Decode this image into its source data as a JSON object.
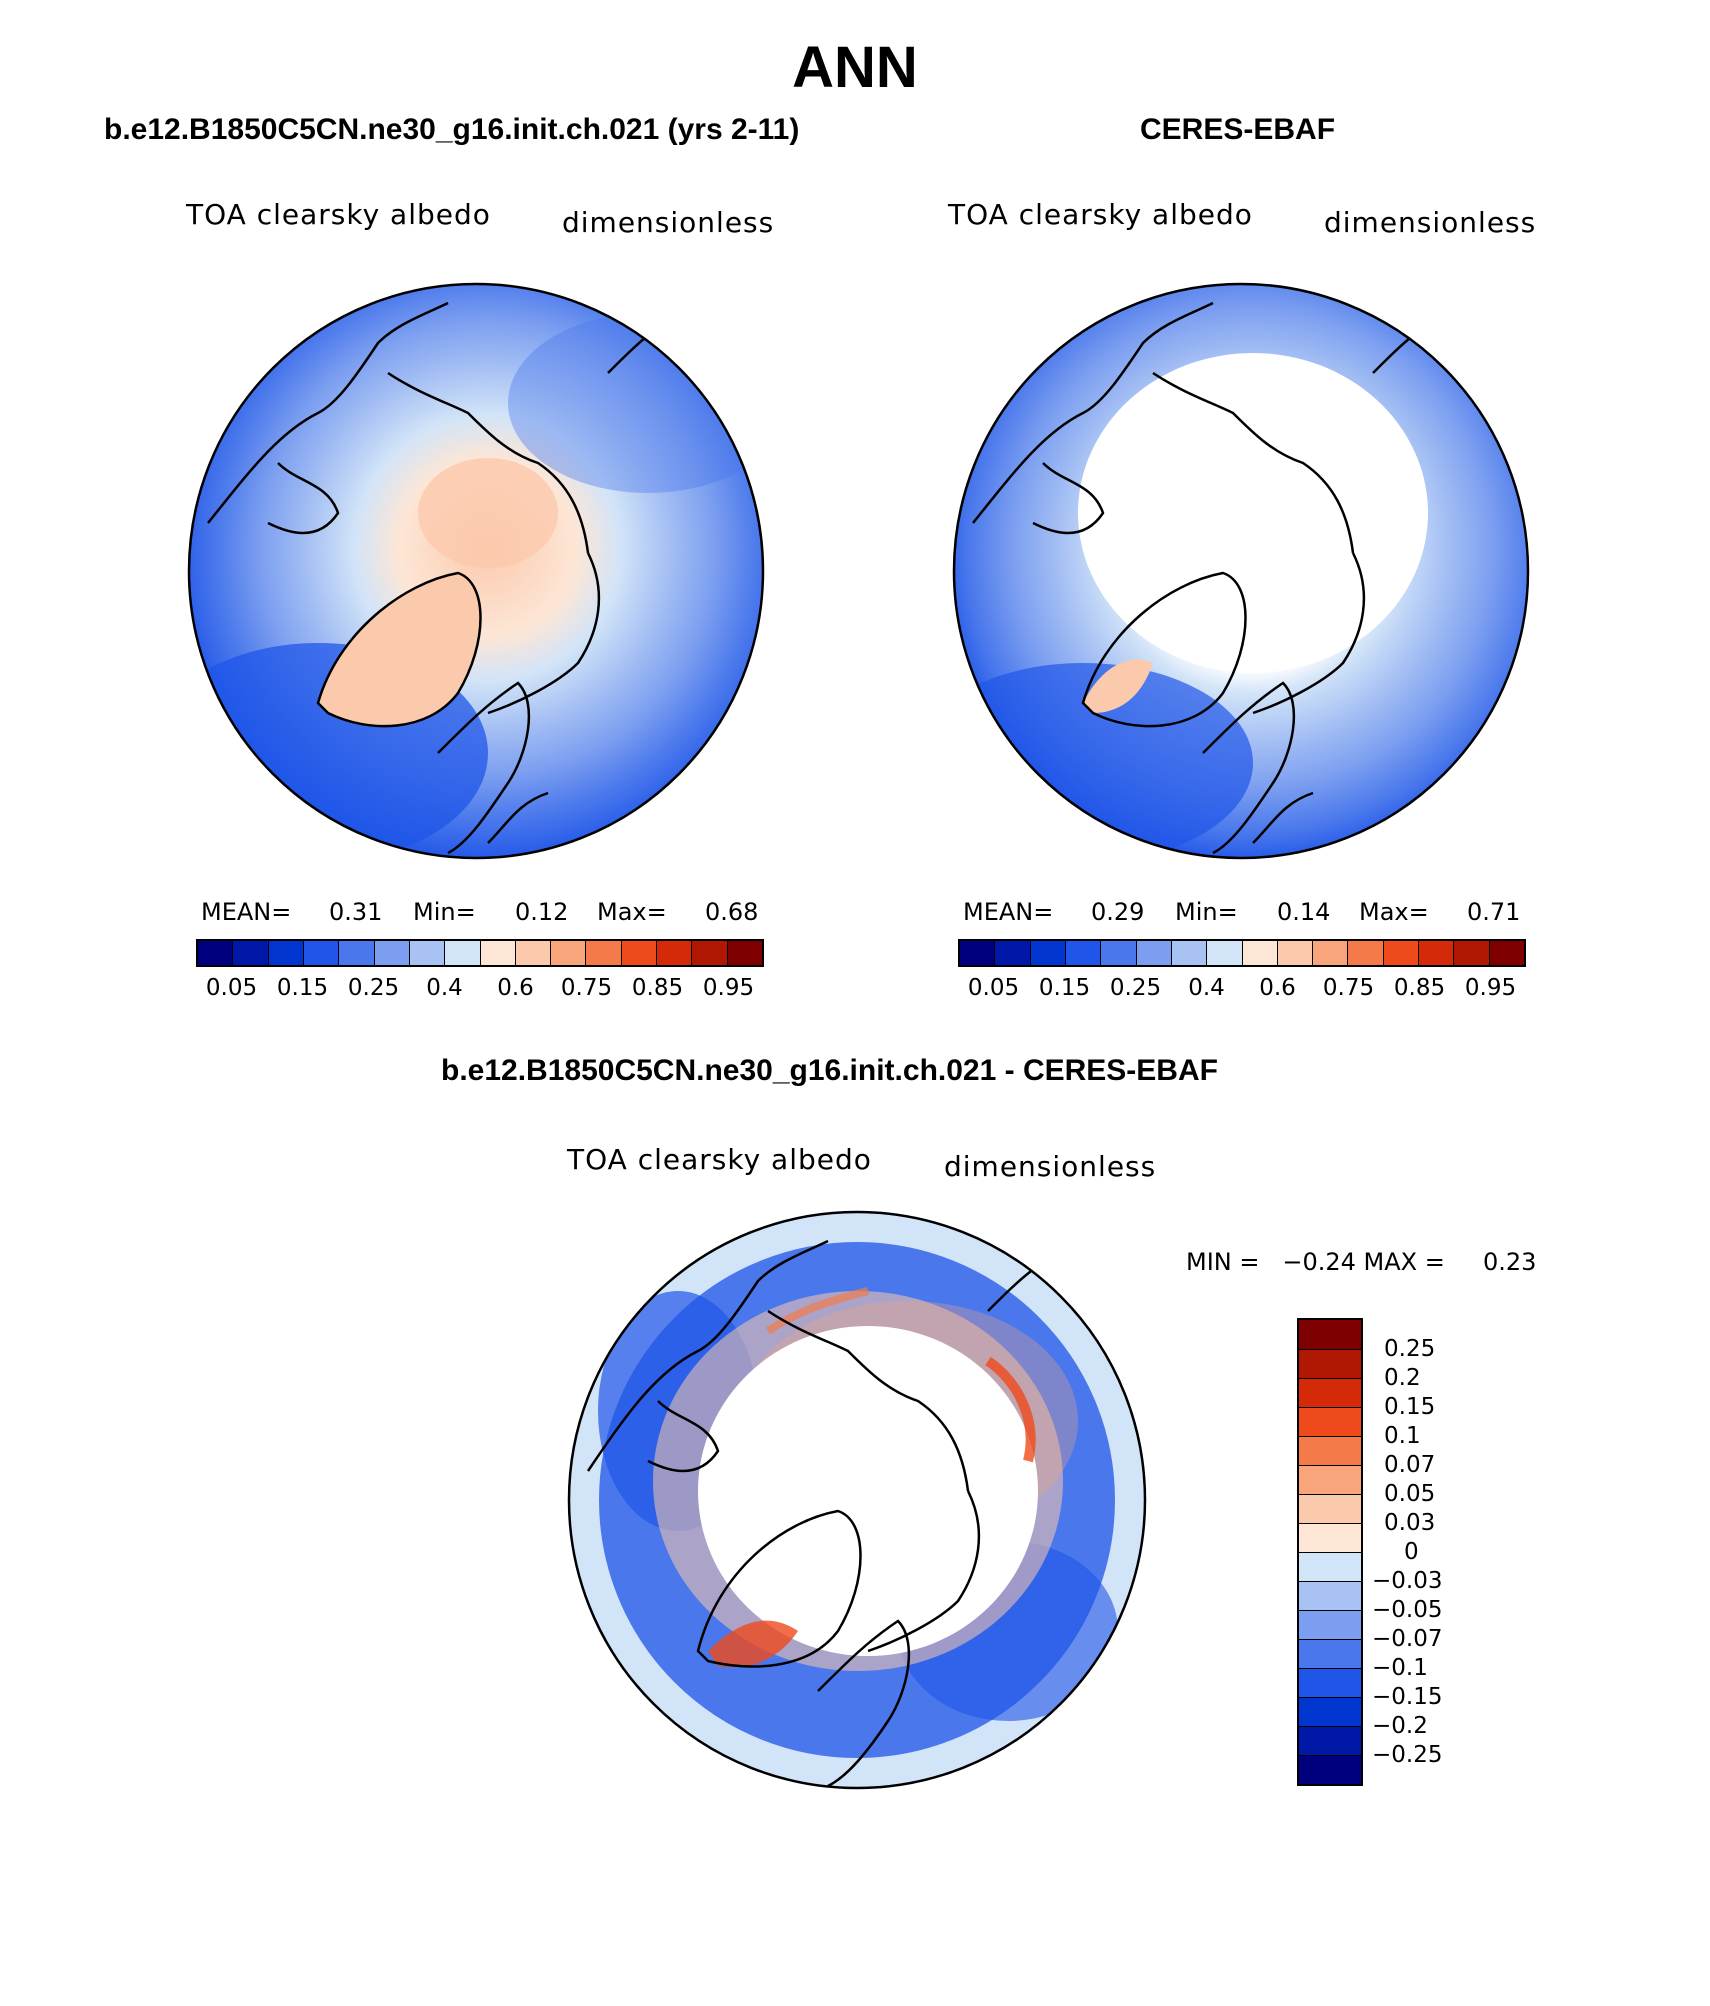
{
  "title": "ANN",
  "panels": [
    {
      "title": "b.e12.B1850C5CN.ne30_g16.init.ch.021 (yrs 2-11)",
      "variable": "TOA clearsky albedo",
      "units": "dimensionless",
      "mean_label": "MEAN=",
      "mean": "0.31",
      "min_label": "Min=",
      "min": "0.12",
      "max_label": "Max=",
      "max": "0.68"
    },
    {
      "title": "CERES-EBAF",
      "variable": "TOA clearsky albedo",
      "units": "dimensionless",
      "mean_label": "MEAN=",
      "mean": "0.29",
      "min_label": "Min=",
      "min": "0.14",
      "max_label": "Max=",
      "max": "0.71"
    },
    {
      "title": "b.e12.B1850C5CN.ne30_g16.init.ch.021 - CERES-EBAF",
      "variable": "TOA clearsky albedo",
      "units": "dimensionless",
      "minmax": "MIN =   −0.24 MAX =     0.23"
    }
  ],
  "colorbar_main": {
    "colors": [
      "#00007f",
      "#0018a8",
      "#0035d0",
      "#1f55e8",
      "#4a78ec",
      "#7b9ef0",
      "#a8c2f4",
      "#d2e4f8",
      "#fde6d6",
      "#fbc9ac",
      "#f8a57c",
      "#f47a4a",
      "#ef4a1c",
      "#d52a08",
      "#b01804",
      "#7e0000"
    ],
    "ticks": [
      "0.05",
      "0.15",
      "0.25",
      "0.4",
      "0.6",
      "0.75",
      "0.85",
      "0.95"
    ]
  },
  "colorbar_diff": {
    "colors": [
      "#7e0000",
      "#b01804",
      "#d52a08",
      "#ef4a1c",
      "#f47a4a",
      "#f8a57c",
      "#fbc9ac",
      "#fde6d6",
      "#d2e4f8",
      "#a8c2f4",
      "#7b9ef0",
      "#4a78ec",
      "#1f55e8",
      "#0035d0",
      "#0018a8",
      "#00007f"
    ],
    "ticks": [
      "0.25",
      "0.2",
      "0.15",
      "0.1",
      "0.07",
      "0.05",
      "0.03",
      "0",
      "−0.03",
      "−0.05",
      "−0.07",
      "−0.1",
      "−0.15",
      "−0.2",
      "−0.25"
    ]
  }
}
